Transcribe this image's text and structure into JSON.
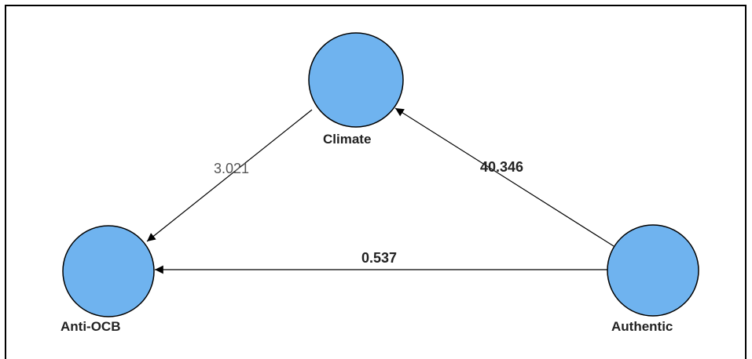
{
  "diagram": {
    "nodes": [
      {
        "id": "climate",
        "label": "Climate"
      },
      {
        "id": "anti_ocb",
        "label": "Anti-OCB"
      },
      {
        "id": "authentic",
        "label": "Authentic"
      }
    ],
    "edges": [
      {
        "from": "climate",
        "to": "anti_ocb",
        "label": "3.021"
      },
      {
        "from": "authentic",
        "to": "climate",
        "label": "40.346"
      },
      {
        "from": "authentic",
        "to": "anti_ocb",
        "label": "0.537"
      }
    ],
    "colors": {
      "node_fill": "#6fb3ef",
      "node_stroke": "#000000",
      "edge": "#000000",
      "text": "#222222"
    }
  }
}
